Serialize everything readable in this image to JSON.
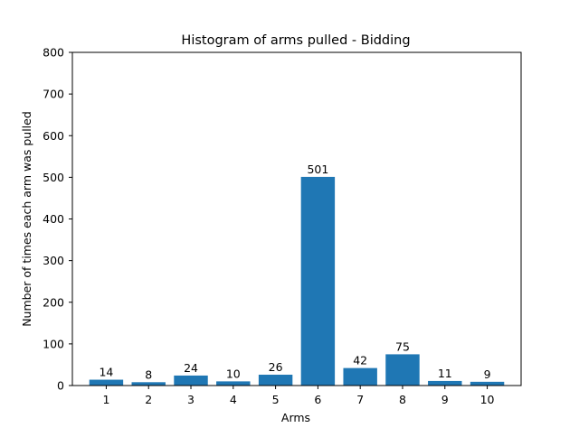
{
  "chart_data": {
    "type": "bar",
    "title": "Histogram of arms pulled - Bidding",
    "xlabel": "Arms",
    "ylabel": "Number of times each arm was pulled",
    "categories": [
      "1",
      "2",
      "3",
      "4",
      "5",
      "6",
      "7",
      "8",
      "9",
      "10"
    ],
    "values": [
      14,
      8,
      24,
      10,
      26,
      501,
      42,
      75,
      11,
      9
    ],
    "data_labels": [
      "14",
      "8",
      "24",
      "10",
      "26",
      "501",
      "42",
      "75",
      "11",
      "9"
    ],
    "ylim": [
      0,
      800
    ],
    "yticks": [
      "0",
      "100",
      "200",
      "300",
      "400",
      "500",
      "600",
      "700",
      "800"
    ],
    "grid": false,
    "legend": "none",
    "bar_color": "#1f77b4"
  }
}
